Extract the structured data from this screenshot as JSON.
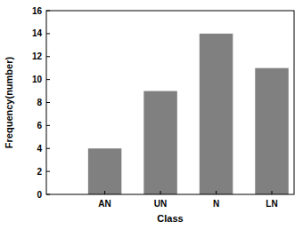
{
  "chart_data": {
    "type": "bar",
    "x_label": "Class",
    "y_label": "Frequency(number)",
    "categories": [
      "AN",
      "UN",
      "N",
      "LN"
    ],
    "values": [
      4,
      9,
      14,
      11
    ],
    "color": "#808080",
    "ylim": [
      0,
      16
    ],
    "yticks": [
      0,
      2,
      4,
      6,
      8,
      10,
      12,
      14,
      16
    ],
    "grid": false
  }
}
